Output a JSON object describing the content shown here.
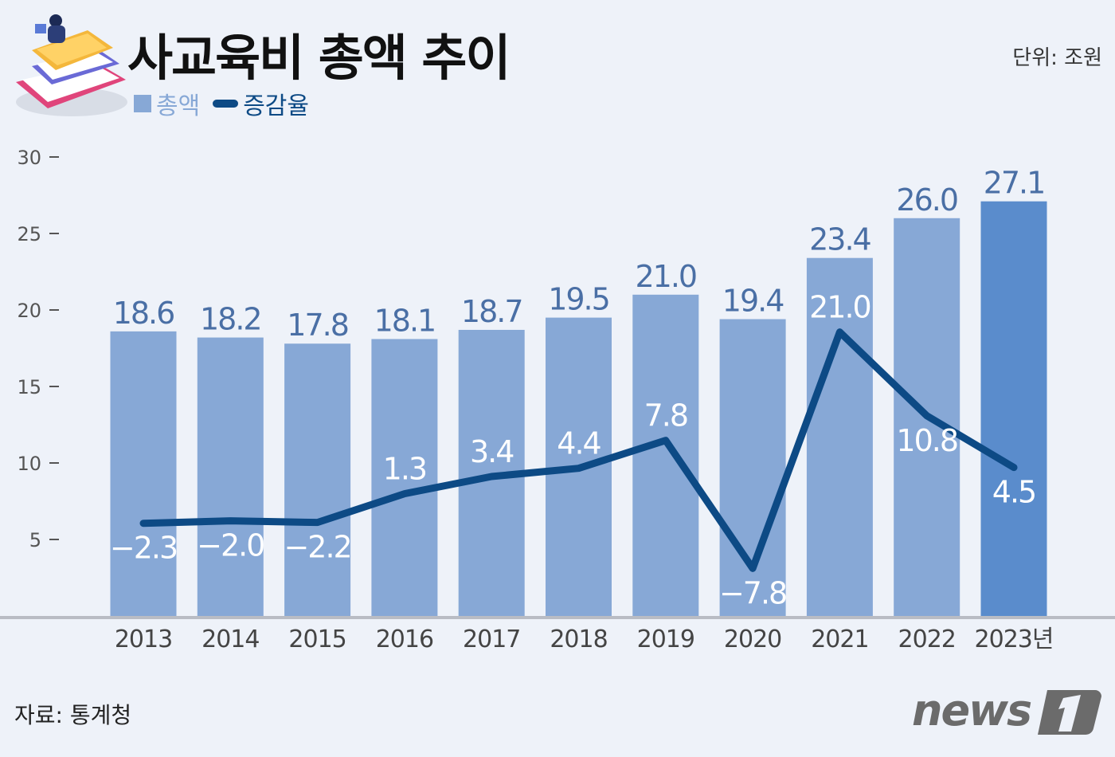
{
  "chart_data": {
    "type": "bar",
    "title": "사교육비 총액 추이",
    "unit_label": "단위: 조원",
    "categories": [
      "2013",
      "2014",
      "2015",
      "2016",
      "2017",
      "2018",
      "2019",
      "2020",
      "2021",
      "2022",
      "2023년"
    ],
    "series": [
      {
        "name": "총액",
        "type": "bar",
        "values": [
          18.6,
          18.2,
          17.8,
          18.1,
          18.7,
          19.5,
          21.0,
          19.4,
          23.4,
          26.0,
          27.1
        ],
        "color": "#87a8d6",
        "highlight_color": "#5a8ccc"
      },
      {
        "name": "증감율",
        "type": "line",
        "values": [
          -2.3,
          -2.0,
          -2.2,
          1.3,
          3.4,
          4.4,
          7.8,
          -7.8,
          21.0,
          10.8,
          4.5
        ],
        "color": "#0d4a85"
      }
    ],
    "bar_labels": [
      "18.6",
      "18.2",
      "17.8",
      "18.1",
      "18.7",
      "19.5",
      "21.0",
      "19.4",
      "23.4",
      "26.0",
      "27.1"
    ],
    "line_labels": [
      "-2.3",
      "-2.0",
      "-2.2",
      "1.3",
      "3.4",
      "4.4",
      "7.8",
      "-7.8",
      "21.0",
      "10.8",
      "4.5"
    ],
    "yticks": [
      "30",
      "25",
      "20",
      "15",
      "10",
      "5"
    ],
    "ylim": [
      0,
      30
    ],
    "grid": false,
    "legend_placement": "top-left",
    "source": "자료: 통계청"
  },
  "logo": "news1",
  "colors": {
    "background": "#eef2f9",
    "bar_label": "#4a6fa5",
    "line_label": "#ffffff"
  }
}
